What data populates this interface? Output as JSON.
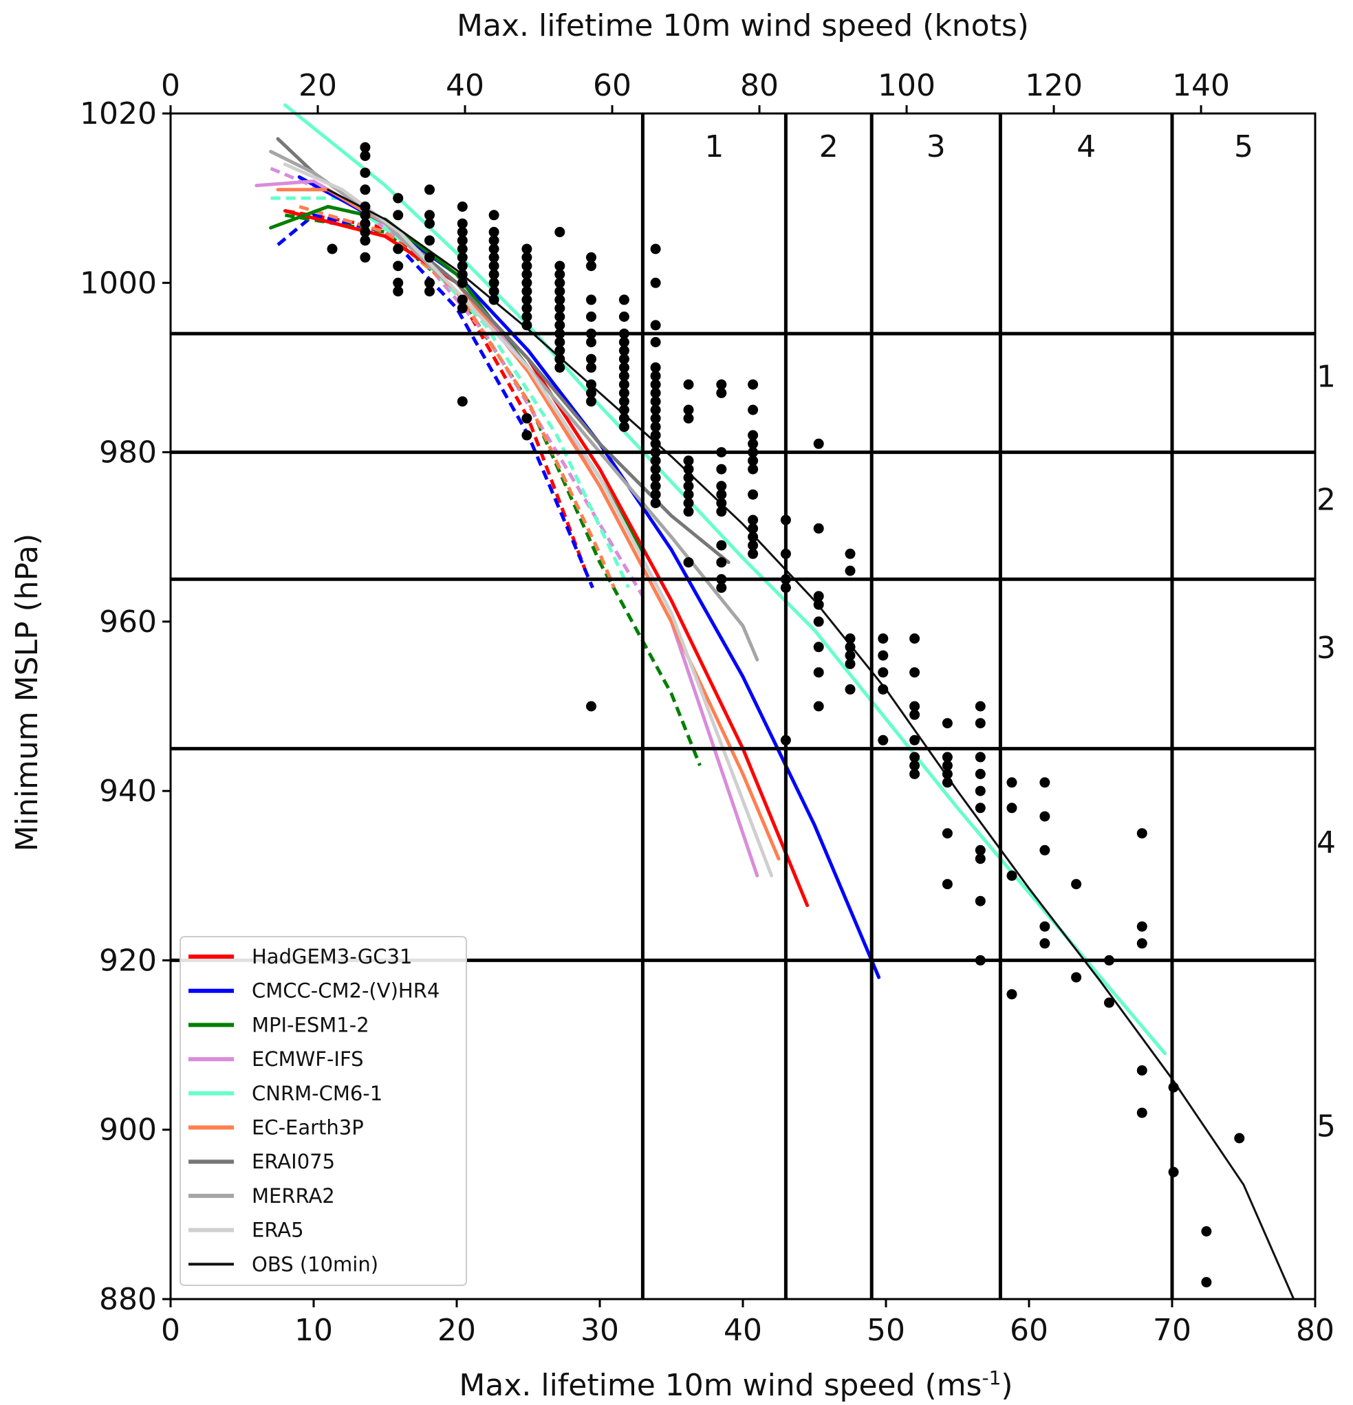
{
  "chart_data": {
    "type": "scatter",
    "xlabel_bottom": "Max. lifetime 10m wind speed (ms",
    "xlabel_bottom_sup": "-1",
    "xlabel_bottom_end": ")",
    "xlabel_top": "Max. lifetime 10m wind speed (knots)",
    "ylabel": "Minimum MSLP (hPa)",
    "xlim": [
      0,
      80
    ],
    "ylim": [
      880,
      1020
    ],
    "x_ticks": [
      0,
      10,
      20,
      30,
      40,
      50,
      60,
      70,
      80
    ],
    "y_ticks": [
      880,
      900,
      920,
      940,
      960,
      980,
      1000,
      1020
    ],
    "knot_ticks": [
      0,
      20,
      40,
      60,
      80,
      100,
      120,
      140
    ],
    "knots_per_ms": 1.94384,
    "grid": false,
    "legend_position": "lower-left",
    "category_lines": {
      "wind_ms": [
        33,
        43,
        49,
        58,
        70
      ],
      "pressure_hpa": [
        994,
        980,
        965,
        945,
        920
      ],
      "wind_labels": [
        "1",
        "2",
        "3",
        "4",
        "5"
      ],
      "pressure_labels": [
        "1",
        "2",
        "3",
        "4",
        "5"
      ],
      "pressure_label_values": [
        989,
        974.5,
        957,
        934,
        900.5
      ]
    },
    "series": [
      {
        "name": "HadGEM3-GC31",
        "color": "#ff0000",
        "fit_solid": [
          [
            8,
            1008.5
          ],
          [
            15,
            1005.5
          ],
          [
            20,
            1000
          ],
          [
            25,
            991
          ],
          [
            30,
            978
          ],
          [
            35,
            962.5
          ],
          [
            40,
            945
          ],
          [
            44.5,
            926.5
          ]
        ],
        "fit_dashed": [
          [
            8,
            1008.5
          ],
          [
            15,
            1006.5
          ],
          [
            20,
            999
          ],
          [
            25,
            984
          ],
          [
            29,
            966
          ]
        ]
      },
      {
        "name": "CMCC-CM2-(V)HR4",
        "color": "#0000ff",
        "fit_solid": [
          [
            9,
            1012.5
          ],
          [
            15,
            1007
          ],
          [
            20,
            1001
          ],
          [
            25,
            992
          ],
          [
            30,
            981
          ],
          [
            35,
            968.5
          ],
          [
            40,
            953.5
          ],
          [
            45,
            936
          ],
          [
            49.5,
            918
          ]
        ],
        "fit_dashed": [
          [
            7.5,
            1004.5
          ],
          [
            10,
            1008
          ],
          [
            15,
            1006
          ],
          [
            20,
            997
          ],
          [
            25,
            982
          ],
          [
            29.5,
            964
          ]
        ]
      },
      {
        "name": "MPI-ESM1-2",
        "color": "#007f00",
        "fit_solid": [
          [
            7,
            1006.5
          ],
          [
            11,
            1009
          ],
          [
            15,
            1007.5
          ],
          [
            20,
            1001
          ],
          [
            25,
            990
          ],
          [
            30,
            977
          ],
          [
            33,
            968
          ]
        ],
        "fit_dashed": [
          [
            8,
            1008
          ],
          [
            15,
            1006
          ],
          [
            20,
            999
          ],
          [
            25,
            986
          ],
          [
            30,
            967
          ],
          [
            35,
            951.5
          ],
          [
            37,
            943
          ]
        ]
      },
      {
        "name": "ECMWF-IFS",
        "color": "#d98cd9",
        "fit_solid": [
          [
            6,
            1011.5
          ],
          [
            10,
            1012
          ],
          [
            15,
            1007
          ],
          [
            20,
            1000
          ],
          [
            25,
            990
          ],
          [
            30,
            976
          ],
          [
            35,
            960
          ],
          [
            41,
            930
          ]
        ],
        "fit_dashed": [
          [
            7,
            1013.5
          ],
          [
            12,
            1010
          ],
          [
            17,
            1004
          ],
          [
            22,
            994
          ],
          [
            27,
            980
          ],
          [
            33,
            963
          ]
        ]
      },
      {
        "name": "CNRM-CM6-1",
        "color": "#66ffcc",
        "fit_solid": [
          [
            8,
            1021
          ],
          [
            15,
            1011.5
          ],
          [
            20,
            1003.5
          ],
          [
            25,
            995
          ],
          [
            30,
            985.5
          ],
          [
            35,
            976.5
          ],
          [
            40,
            967.5
          ],
          [
            45,
            959
          ],
          [
            50,
            948.5
          ],
          [
            55,
            938
          ],
          [
            60,
            928
          ],
          [
            65,
            918
          ],
          [
            69.5,
            909
          ]
        ],
        "fit_dashed": [
          [
            7,
            1010
          ],
          [
            12,
            1010
          ],
          [
            17,
            1004
          ],
          [
            22,
            995
          ],
          [
            27,
            982
          ],
          [
            32,
            964
          ]
        ]
      },
      {
        "name": "EC-Earth3P",
        "color": "#ff7f4f",
        "fit_solid": [
          [
            7.5,
            1011
          ],
          [
            11,
            1011
          ],
          [
            15,
            1007
          ],
          [
            20,
            1000
          ],
          [
            25,
            989.5
          ],
          [
            30,
            976
          ],
          [
            35,
            960
          ],
          [
            40,
            942
          ],
          [
            42.5,
            932
          ]
        ],
        "fit_dashed": [
          [
            9,
            1009
          ],
          [
            15,
            1006
          ],
          [
            20,
            999
          ],
          [
            25,
            986
          ],
          [
            30,
            968
          ],
          [
            31,
            964
          ]
        ]
      },
      {
        "name": "ERAI075",
        "color": "#777777",
        "fit_solid": [
          [
            7.5,
            1017
          ],
          [
            10,
            1013
          ],
          [
            15,
            1007
          ],
          [
            20,
            1000
          ],
          [
            25,
            991
          ],
          [
            30,
            981
          ],
          [
            35,
            972.5
          ],
          [
            39,
            967
          ]
        ]
      },
      {
        "name": "MERRA2",
        "color": "#a5a5a5",
        "fit_solid": [
          [
            7,
            1015.5
          ],
          [
            10,
            1013
          ],
          [
            15,
            1007
          ],
          [
            20,
            999
          ],
          [
            25,
            990
          ],
          [
            30,
            980
          ],
          [
            35,
            970
          ],
          [
            40,
            959.5
          ],
          [
            41,
            955.5
          ]
        ]
      },
      {
        "name": "ERA5",
        "color": "#cfcfcf",
        "fit_solid": [
          [
            8,
            1014
          ],
          [
            12,
            1011
          ],
          [
            16,
            1006
          ],
          [
            20,
            999
          ],
          [
            25,
            990
          ],
          [
            30,
            977
          ],
          [
            35,
            961
          ],
          [
            42,
            930
          ]
        ]
      },
      {
        "name": "OBS (10min)",
        "color": "#111111",
        "fit_solid": [
          [
            11,
            1011
          ],
          [
            15,
            1007.5
          ],
          [
            20,
            1001.5
          ],
          [
            25,
            994.5
          ],
          [
            30,
            987
          ],
          [
            35,
            979.5
          ],
          [
            40,
            971.5
          ],
          [
            45,
            962.5
          ],
          [
            50,
            952
          ],
          [
            55,
            940
          ],
          [
            60,
            928.5
          ],
          [
            65,
            917.5
          ],
          [
            70,
            906
          ],
          [
            75,
            893.5
          ],
          [
            78.5,
            880
          ]
        ]
      }
    ],
    "obs_points": [
      [
        11.3,
        1004
      ],
      [
        13.6,
        1016
      ],
      [
        13.6,
        1015
      ],
      [
        13.6,
        1013
      ],
      [
        13.6,
        1011
      ],
      [
        13.6,
        1009
      ],
      [
        13.6,
        1008
      ],
      [
        13.6,
        1007
      ],
      [
        13.6,
        1006
      ],
      [
        13.6,
        1005
      ],
      [
        13.6,
        1003
      ],
      [
        15.9,
        1010
      ],
      [
        15.9,
        1008
      ],
      [
        15.9,
        1004
      ],
      [
        15.9,
        1002
      ],
      [
        15.9,
        1000
      ],
      [
        15.9,
        999
      ],
      [
        18.1,
        1011
      ],
      [
        18.1,
        1008
      ],
      [
        18.1,
        1007
      ],
      [
        18.1,
        1005
      ],
      [
        18.1,
        1003
      ],
      [
        18.1,
        1000
      ],
      [
        18.1,
        999
      ],
      [
        20.4,
        1009
      ],
      [
        20.4,
        1007
      ],
      [
        20.4,
        1006
      ],
      [
        20.4,
        1005
      ],
      [
        20.4,
        1004
      ],
      [
        20.4,
        1003
      ],
      [
        20.4,
        1002
      ],
      [
        20.4,
        1001
      ],
      [
        20.4,
        1000
      ],
      [
        20.4,
        998
      ],
      [
        20.4,
        997
      ],
      [
        20.4,
        986
      ],
      [
        22.6,
        1008
      ],
      [
        22.6,
        1006
      ],
      [
        22.6,
        1005
      ],
      [
        22.6,
        1004
      ],
      [
        22.6,
        1003
      ],
      [
        22.6,
        1002
      ],
      [
        22.6,
        1001
      ],
      [
        22.6,
        1000
      ],
      [
        22.6,
        999
      ],
      [
        22.6,
        998
      ],
      [
        24.9,
        1004
      ],
      [
        24.9,
        1003
      ],
      [
        24.9,
        1002
      ],
      [
        24.9,
        1001
      ],
      [
        24.9,
        1000
      ],
      [
        24.9,
        999
      ],
      [
        24.9,
        998
      ],
      [
        24.9,
        997
      ],
      [
        24.9,
        996
      ],
      [
        24.9,
        995
      ],
      [
        24.9,
        984
      ],
      [
        24.9,
        982
      ],
      [
        27.2,
        1006
      ],
      [
        27.2,
        1002
      ],
      [
        27.2,
        1001
      ],
      [
        27.2,
        1000
      ],
      [
        27.2,
        999
      ],
      [
        27.2,
        998
      ],
      [
        27.2,
        997
      ],
      [
        27.2,
        996
      ],
      [
        27.2,
        995
      ],
      [
        27.2,
        994
      ],
      [
        27.2,
        993
      ],
      [
        27.2,
        992
      ],
      [
        27.2,
        991
      ],
      [
        27.2,
        990
      ],
      [
        29.4,
        1003
      ],
      [
        29.4,
        1002
      ],
      [
        29.4,
        998
      ],
      [
        29.4,
        996
      ],
      [
        29.4,
        994
      ],
      [
        29.4,
        993
      ],
      [
        29.4,
        991
      ],
      [
        29.4,
        990
      ],
      [
        29.4,
        988
      ],
      [
        29.4,
        987
      ],
      [
        29.4,
        986
      ],
      [
        29.4,
        950
      ],
      [
        31.7,
        998
      ],
      [
        31.7,
        996
      ],
      [
        31.7,
        994
      ],
      [
        31.7,
        993
      ],
      [
        31.7,
        992
      ],
      [
        31.7,
        991
      ],
      [
        31.7,
        990
      ],
      [
        31.7,
        989
      ],
      [
        31.7,
        988
      ],
      [
        31.7,
        987
      ],
      [
        31.7,
        986
      ],
      [
        31.7,
        985
      ],
      [
        31.7,
        984
      ],
      [
        31.7,
        983
      ],
      [
        33.9,
        1004
      ],
      [
        33.9,
        1000
      ],
      [
        33.9,
        995
      ],
      [
        33.9,
        993
      ],
      [
        33.9,
        990
      ],
      [
        33.9,
        989
      ],
      [
        33.9,
        988
      ],
      [
        33.9,
        987
      ],
      [
        33.9,
        986
      ],
      [
        33.9,
        985
      ],
      [
        33.9,
        984
      ],
      [
        33.9,
        983
      ],
      [
        33.9,
        982
      ],
      [
        33.9,
        981
      ],
      [
        33.9,
        980
      ],
      [
        33.9,
        979
      ],
      [
        33.9,
        978
      ],
      [
        33.9,
        977
      ],
      [
        33.9,
        976
      ],
      [
        33.9,
        975
      ],
      [
        33.9,
        974
      ],
      [
        36.2,
        988
      ],
      [
        36.2,
        985
      ],
      [
        36.2,
        984
      ],
      [
        36.2,
        979
      ],
      [
        36.2,
        978
      ],
      [
        36.2,
        977
      ],
      [
        36.2,
        976
      ],
      [
        36.2,
        975
      ],
      [
        36.2,
        974
      ],
      [
        36.2,
        973
      ],
      [
        36.2,
        967
      ],
      [
        38.5,
        988
      ],
      [
        38.5,
        987
      ],
      [
        38.5,
        980
      ],
      [
        38.5,
        978
      ],
      [
        38.5,
        976
      ],
      [
        38.5,
        975
      ],
      [
        38.5,
        974
      ],
      [
        38.5,
        973
      ],
      [
        38.5,
        969
      ],
      [
        38.5,
        967
      ],
      [
        38.5,
        965
      ],
      [
        38.5,
        964
      ],
      [
        40.7,
        988
      ],
      [
        40.7,
        985
      ],
      [
        40.7,
        982
      ],
      [
        40.7,
        981
      ],
      [
        40.7,
        980
      ],
      [
        40.7,
        979
      ],
      [
        40.7,
        978
      ],
      [
        40.7,
        975
      ],
      [
        40.7,
        972
      ],
      [
        40.7,
        971
      ],
      [
        40.7,
        970
      ],
      [
        40.7,
        969
      ],
      [
        40.7,
        968
      ],
      [
        43.0,
        972
      ],
      [
        43.0,
        968
      ],
      [
        43.0,
        965
      ],
      [
        43.0,
        964
      ],
      [
        43.0,
        946
      ],
      [
        45.3,
        981
      ],
      [
        45.3,
        971
      ],
      [
        45.3,
        963
      ],
      [
        45.3,
        962
      ],
      [
        45.3,
        960
      ],
      [
        45.3,
        957
      ],
      [
        45.3,
        954
      ],
      [
        45.3,
        950
      ],
      [
        47.5,
        968
      ],
      [
        47.5,
        966
      ],
      [
        47.5,
        958
      ],
      [
        47.5,
        957
      ],
      [
        47.5,
        956
      ],
      [
        47.5,
        955
      ],
      [
        47.5,
        952
      ],
      [
        49.8,
        958
      ],
      [
        49.8,
        956
      ],
      [
        49.8,
        954
      ],
      [
        49.8,
        952
      ],
      [
        49.8,
        946
      ],
      [
        52.0,
        958
      ],
      [
        52.0,
        954
      ],
      [
        52.0,
        950
      ],
      [
        52.0,
        949
      ],
      [
        52.0,
        946
      ],
      [
        52.0,
        944
      ],
      [
        52.0,
        943
      ],
      [
        52.0,
        942
      ],
      [
        54.3,
        948
      ],
      [
        54.3,
        944
      ],
      [
        54.3,
        943
      ],
      [
        54.3,
        942
      ],
      [
        54.3,
        941
      ],
      [
        54.3,
        935
      ],
      [
        54.3,
        929
      ],
      [
        56.6,
        950
      ],
      [
        56.6,
        948
      ],
      [
        56.6,
        944
      ],
      [
        56.6,
        942
      ],
      [
        56.6,
        940
      ],
      [
        56.6,
        938
      ],
      [
        56.6,
        933
      ],
      [
        56.6,
        932
      ],
      [
        56.6,
        927
      ],
      [
        56.6,
        920
      ],
      [
        58.8,
        941
      ],
      [
        58.8,
        938
      ],
      [
        58.8,
        930
      ],
      [
        58.8,
        916
      ],
      [
        61.1,
        941
      ],
      [
        61.1,
        937
      ],
      [
        61.1,
        933
      ],
      [
        61.1,
        924
      ],
      [
        61.1,
        922
      ],
      [
        63.3,
        929
      ],
      [
        63.3,
        918
      ],
      [
        65.6,
        920
      ],
      [
        65.6,
        915
      ],
      [
        67.9,
        935
      ],
      [
        67.9,
        924
      ],
      [
        67.9,
        922
      ],
      [
        67.9,
        907
      ],
      [
        67.9,
        902
      ],
      [
        70.1,
        905
      ],
      [
        70.1,
        895
      ],
      [
        72.4,
        888
      ],
      [
        72.4,
        882
      ],
      [
        74.7,
        899
      ]
    ]
  }
}
